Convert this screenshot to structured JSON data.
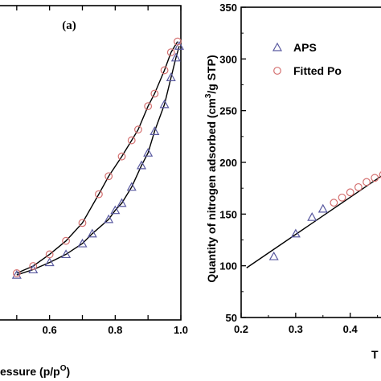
{
  "chart_data": [
    {
      "type": "scatter",
      "panel_label": "(a)",
      "xlabel_visible": "essure (p/p",
      "xlabel_superscript": "O",
      "xlabel_tail": ")",
      "xlim": [
        0.4,
        1.0
      ],
      "ylim": [
        0,
        350
      ],
      "x_ticks": [
        "0.6",
        "0.8",
        "1.0"
      ],
      "grid": false,
      "series": [
        {
          "marker": "triangle",
          "color": "#5a5aa0",
          "x": [
            0.5,
            0.55,
            0.6,
            0.65,
            0.7,
            0.73,
            0.78,
            0.8,
            0.82,
            0.85,
            0.88,
            0.9,
            0.92,
            0.95,
            0.97,
            0.985,
            0.995
          ],
          "y": [
            50,
            56,
            64,
            73,
            85,
            96,
            112,
            122,
            130,
            148,
            172,
            186,
            210,
            240,
            270,
            292,
            305
          ]
        },
        {
          "marker": "circle",
          "color": "#d47070",
          "x": [
            0.5,
            0.55,
            0.6,
            0.65,
            0.7,
            0.75,
            0.78,
            0.82,
            0.85,
            0.87,
            0.9,
            0.92,
            0.95,
            0.97,
            0.99
          ],
          "y": [
            52,
            60,
            73,
            88,
            108,
            140,
            160,
            182,
            200,
            212,
            238,
            252,
            278,
            298,
            310
          ]
        }
      ]
    },
    {
      "type": "scatter",
      "ylabel_pre": "Quantity of nitrogen adsorbed (cm",
      "ylabel_sup": "3",
      "ylabel_post": "/g STP)",
      "xlabel_visible": "T",
      "xlim": [
        0.2,
        0.48
      ],
      "ylim": [
        50,
        350
      ],
      "x_ticks": [
        "0.2",
        "0.3",
        "0.4"
      ],
      "y_ticks": [
        "50",
        "100",
        "150",
        "200",
        "250",
        "300",
        "350"
      ],
      "legend_position": "top-right",
      "grid": false,
      "series": [
        {
          "name": "APS",
          "marker": "triangle",
          "color": "#5a5aa0",
          "x": [
            0.26,
            0.3,
            0.33,
            0.35
          ],
          "y": [
            109,
            131,
            147,
            155
          ]
        },
        {
          "name": "Fitted Po",
          "marker": "circle",
          "color": "#d47070",
          "x": [
            0.37,
            0.385,
            0.4,
            0.415,
            0.43,
            0.445,
            0.46
          ],
          "y": [
            161,
            166,
            171,
            176,
            181,
            185,
            188
          ]
        }
      ],
      "fit_line": {
        "x": [
          0.21,
          0.48
        ],
        "y": [
          98,
          195
        ]
      }
    }
  ]
}
